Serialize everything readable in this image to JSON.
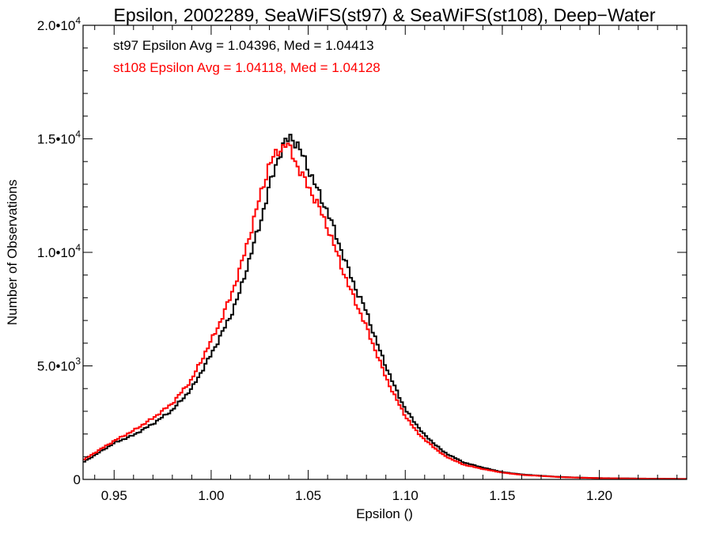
{
  "chart_data": {
    "type": "line",
    "title": "Epsilon, 2002289, SeaWiFS(st97) & SeaWiFS(st108), Deep−Water",
    "xlabel": "Epsilon ()",
    "ylabel": "Number of Observations",
    "xlim": [
      0.934,
      1.245
    ],
    "ylim": [
      0,
      20000
    ],
    "x_ticks": [
      0.95,
      1.0,
      1.05,
      1.1,
      1.15,
      1.2
    ],
    "x_tick_labels": [
      "0.95",
      "1.00",
      "1.05",
      "1.10",
      "1.15",
      "1.20"
    ],
    "y_ticks": [
      0,
      5000,
      10000,
      15000,
      20000
    ],
    "y_tick_labels": [
      {
        "mantissa": "0",
        "exp": ""
      },
      {
        "mantissa": "5.0•10",
        "exp": "3"
      },
      {
        "mantissa": "1.0•10",
        "exp": "4"
      },
      {
        "mantissa": "1.5•10",
        "exp": "4"
      },
      {
        "mantissa": "2.0•10",
        "exp": "4"
      }
    ],
    "grid": false,
    "legend_placement": "top-left",
    "annotations": [
      {
        "text": "st97 Epsilon Avg = 1.04396, Med = 1.04413",
        "color": "#000000"
      },
      {
        "text": "st108 Epsilon Avg = 1.04118, Med = 1.04128",
        "color": "#ff0000"
      }
    ],
    "series": [
      {
        "color": "#000000",
        "x": [
          0.934,
          0.95,
          0.96,
          0.97,
          0.98,
          0.99,
          1.0,
          1.005,
          1.01,
          1.015,
          1.02,
          1.025,
          1.03,
          1.035,
          1.0385,
          1.0415,
          1.0445,
          1.048,
          1.052,
          1.056,
          1.06,
          1.065,
          1.07,
          1.075,
          1.08,
          1.085,
          1.09,
          1.095,
          1.1,
          1.105,
          1.11,
          1.12,
          1.13,
          1.14,
          1.15,
          1.16,
          1.17,
          1.18,
          1.19,
          1.2,
          1.22,
          1.245
        ],
        "y": [
          750,
          1600,
          1950,
          2450,
          3050,
          4000,
          5500,
          6350,
          7200,
          8300,
          9800,
          11200,
          12900,
          14300,
          14900,
          15100,
          14700,
          14100,
          13300,
          12500,
          11800,
          10600,
          9400,
          8300,
          7400,
          6100,
          5000,
          4000,
          3100,
          2500,
          1950,
          1200,
          750,
          520,
          320,
          220,
          160,
          110,
          80,
          60,
          40,
          20
        ]
      },
      {
        "color": "#ff0000",
        "x": [
          0.934,
          0.95,
          0.96,
          0.97,
          0.98,
          0.99,
          1.0,
          1.005,
          1.01,
          1.015,
          1.02,
          1.025,
          1.03,
          1.035,
          1.0385,
          1.0415,
          1.0445,
          1.048,
          1.052,
          1.056,
          1.06,
          1.065,
          1.07,
          1.075,
          1.08,
          1.085,
          1.09,
          1.095,
          1.1,
          1.105,
          1.11,
          1.12,
          1.13,
          1.14,
          1.15,
          1.16,
          1.17,
          1.18,
          1.19,
          1.2,
          1.22,
          1.245
        ],
        "y": [
          850,
          1700,
          2150,
          2700,
          3350,
          4400,
          6100,
          7000,
          8050,
          9300,
          10800,
          12400,
          13900,
          14500,
          14800,
          14400,
          13800,
          13200,
          12600,
          11900,
          11100,
          9900,
          8700,
          7700,
          6700,
          5600,
          4500,
          3600,
          2800,
          2200,
          1750,
          1050,
          650,
          460,
          300,
          200,
          150,
          100,
          75,
          55,
          35,
          20
        ]
      }
    ]
  }
}
